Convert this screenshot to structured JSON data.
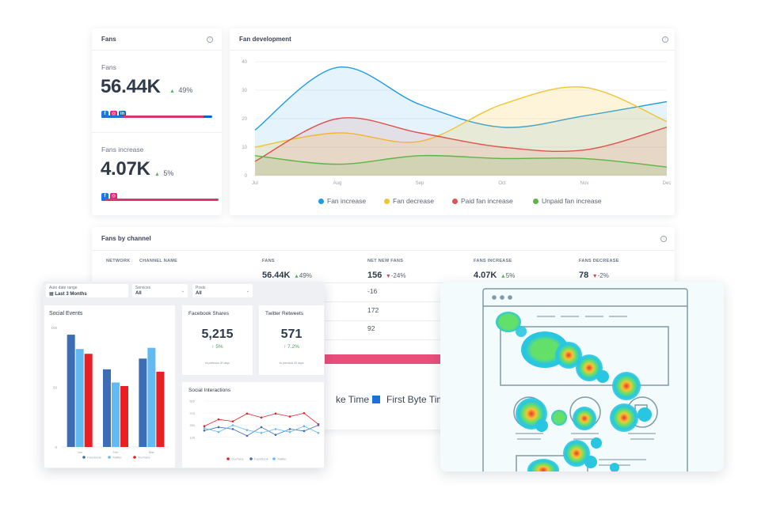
{
  "fans_card": {
    "title": "Fans",
    "fans_label": "Fans",
    "fans_value": "56.44K",
    "fans_pct": "49%",
    "increase_label": "Fans increase",
    "increase_value": "4.07K",
    "increase_pct": "5%",
    "social_fb": "f",
    "social_ig": "◎",
    "social_li": "in"
  },
  "fan_dev": {
    "title": "Fan development",
    "legend": [
      "Fan increase",
      "Fan decrease",
      "Paid fan increase",
      "Unpaid fan increase"
    ]
  },
  "channel": {
    "title": "Fans by channel",
    "headers": {
      "network": "NETWORK",
      "channel_name": "CHANNEL NAME",
      "fans": "FANS",
      "net_new": "NET NEW FANS",
      "increase": "FANS INCREASE",
      "decrease": "FANS DECREASE"
    },
    "totals": {
      "fans": "56.44K",
      "fans_pct": "49%",
      "net_new": "156",
      "net_new_pct": "-24%",
      "increase": "4.07K",
      "increase_pct": "5%",
      "decrease": "78",
      "decrease_pct": "-2%"
    },
    "rows": [
      "-16",
      "172",
      "92"
    ],
    "legend_fragment_1": "ke Time",
    "legend_fragment_2": "First Byte Time"
  },
  "dash": {
    "date_label": "Auto date range",
    "date_value": "Last 3 Months",
    "services_label": "Services",
    "services_value": "All",
    "posts_label": "Posts",
    "posts_value": "All",
    "social_events_title": "Social Events",
    "fb_shares_title": "Facebook Shares",
    "fb_shares_value": "5,215",
    "fb_shares_pct": "↑ 5%",
    "fb_shares_sub": "vs previous 30 days",
    "tw_title": "Twitter Retweets",
    "tw_value": "571",
    "tw_pct": "↑ 7.2%",
    "tw_sub": "vs previous 30 days",
    "interactions_title": "Social Interactions",
    "interactions_legend": [
      "YouTube",
      "Facebook",
      "Twitter"
    ],
    "events_legend": [
      "Facebook",
      "Twitter",
      "YouTube"
    ]
  },
  "colors": {
    "blue": "#1e9be6",
    "yellow": "#f3c431",
    "red": "#e0534f",
    "green": "#5cb545",
    "pink": "#e94f7a",
    "bar_dark": "#3d6db5",
    "bar_light": "#62baf2",
    "bar_red": "#ea1f24"
  },
  "chart_data": [
    {
      "type": "area",
      "title": "Fan development",
      "x": [
        "Jul",
        "Aug",
        "Sep",
        "Oct",
        "Nov",
        "Dec"
      ],
      "ylim": [
        0,
        40
      ],
      "yticks": [
        0,
        10,
        20,
        30,
        40
      ],
      "series": [
        {
          "name": "Fan increase",
          "values": [
            16,
            38,
            25,
            17,
            21,
            26
          ]
        },
        {
          "name": "Fan decrease",
          "values": [
            10,
            15,
            12,
            25,
            31,
            19
          ]
        },
        {
          "name": "Paid fan increase",
          "values": [
            5,
            20,
            15,
            10,
            9,
            17
          ]
        },
        {
          "name": "Unpaid fan increase",
          "values": [
            7,
            4,
            7,
            6,
            6,
            3
          ]
        }
      ]
    },
    {
      "type": "bar",
      "title": "Social Events",
      "categories": [
        "Jan",
        "Feb",
        "Mar"
      ],
      "ylim": [
        0,
        100
      ],
      "yticks": [
        0,
        50,
        100
      ],
      "series": [
        {
          "name": "Facebook",
          "values": [
            94,
            65,
            74
          ]
        },
        {
          "name": "Twitter",
          "values": [
            82,
            54,
            83
          ]
        },
        {
          "name": "YouTube",
          "values": [
            78,
            51,
            63
          ]
        }
      ]
    },
    {
      "type": "line",
      "title": "Social Interactions",
      "yticks": [
        125,
        250,
        375,
        500
      ],
      "ylim": [
        0,
        500
      ],
      "series": [
        {
          "name": "YouTube",
          "values": [
            240,
            310,
            290,
            370,
            330,
            370,
            340,
            375,
            260
          ]
        },
        {
          "name": "Facebook",
          "values": [
            195,
            230,
            210,
            140,
            230,
            150,
            210,
            190,
            250
          ]
        },
        {
          "name": "Twitter",
          "values": [
            220,
            180,
            250,
            200,
            170,
            210,
            180,
            240,
            170
          ]
        }
      ]
    }
  ]
}
